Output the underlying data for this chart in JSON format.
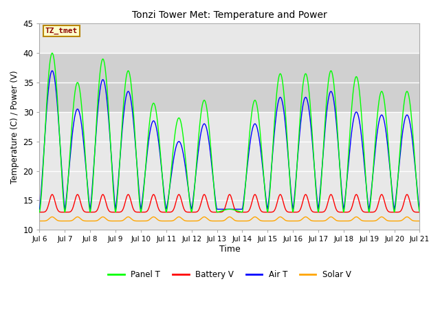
{
  "title": "Tonzi Tower Met: Temperature and Power",
  "xlabel": "Time",
  "ylabel": "Temperature (C) / Power (V)",
  "ylim": [
    10,
    45
  ],
  "n_days": 15,
  "annotation_text": "TZ_tmet",
  "annotation_color": "#8B0000",
  "annotation_bg": "#FFFFCC",
  "annotation_border": "#B8860B",
  "fig_bg_color": "#FFFFFF",
  "plot_bg_color": "#E8E8E8",
  "shaded_band": [
    30,
    40
  ],
  "shaded_color": "#D0D0D0",
  "grid_color": "#FFFFFF",
  "colors": {
    "panel_t": "#00FF00",
    "battery_v": "#FF0000",
    "air_t": "#0000FF",
    "solar_v": "#FFA500"
  },
  "legend_labels": [
    "Panel T",
    "Battery V",
    "Air T",
    "Solar V"
  ],
  "xtick_labels": [
    "Jul 6",
    "Jul 7",
    "Jul 8",
    "Jul 9",
    "Jul 10",
    "Jul 11",
    "Jul 12",
    "Jul 13",
    "Jul 14",
    "Jul 15",
    "Jul 16",
    "Jul 17",
    "Jul 18",
    "Jul 19",
    "Jul 20",
    "Jul 21"
  ],
  "ytick_values": [
    10,
    15,
    20,
    25,
    30,
    35,
    40,
    45
  ],
  "figsize": [
    6.4,
    4.8
  ],
  "dpi": 100
}
